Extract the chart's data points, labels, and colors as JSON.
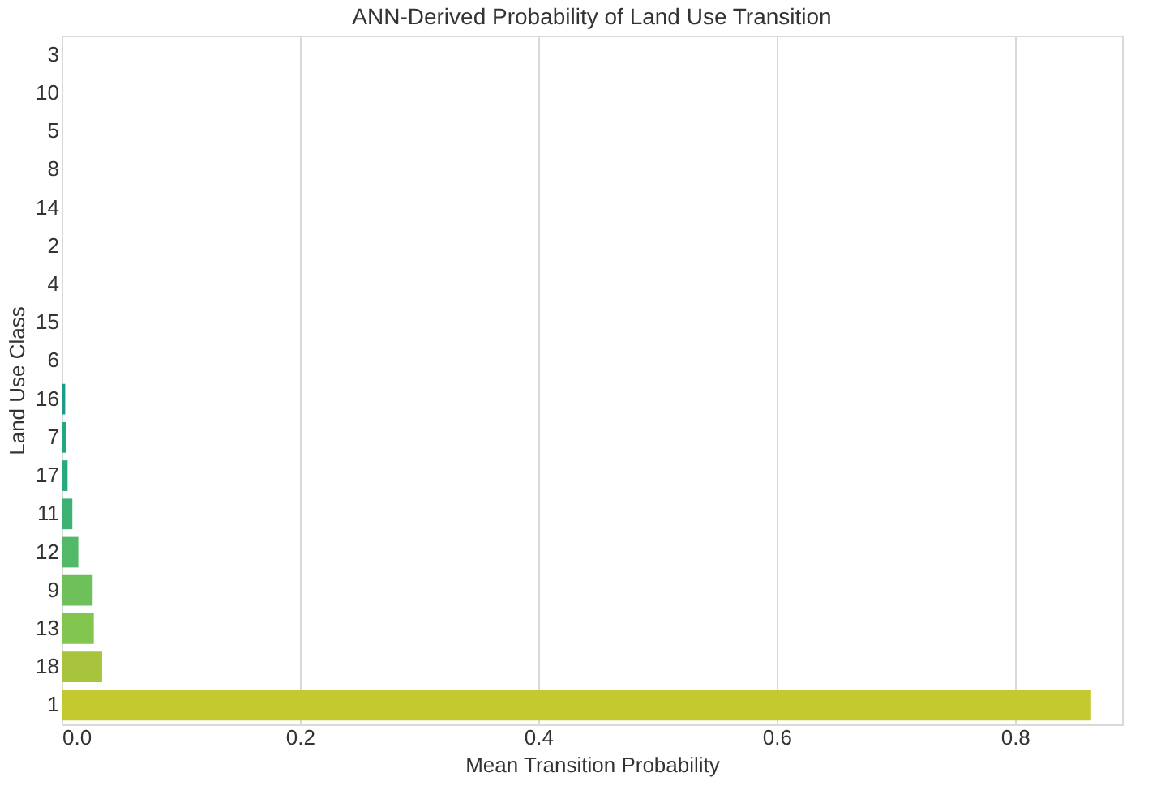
{
  "chart_data": {
    "type": "bar",
    "orientation": "horizontal",
    "title": "ANN-Derived Probability of Land Use Transition",
    "xlabel": "Mean Transition Probability",
    "ylabel": "Land Use Class",
    "categories": [
      "3",
      "10",
      "5",
      "8",
      "14",
      "2",
      "4",
      "15",
      "6",
      "16",
      "7",
      "17",
      "11",
      "12",
      "9",
      "13",
      "18",
      "1"
    ],
    "values": [
      0,
      0,
      0,
      0,
      0,
      0,
      0,
      0,
      0,
      0.003,
      0.004,
      0.005,
      0.009,
      0.014,
      0.026,
      0.027,
      0.034,
      0.864
    ],
    "colors": [
      "#440154",
      "#481a6c",
      "#472f7d",
      "#414487",
      "#39568c",
      "#31688e",
      "#2a788e",
      "#23888e",
      "#1f988b",
      "#1f9a8a",
      "#22a784",
      "#2aa97e",
      "#3bb273",
      "#52ba67",
      "#6ec05a",
      "#82c650",
      "#a8c43c",
      "#c5c930"
    ],
    "xlim": [
      0,
      0.89
    ],
    "xticks": [
      {
        "value": 0,
        "label": "0.0"
      },
      0.2,
      0.4,
      0.6,
      0.8
    ],
    "grid": "x"
  }
}
